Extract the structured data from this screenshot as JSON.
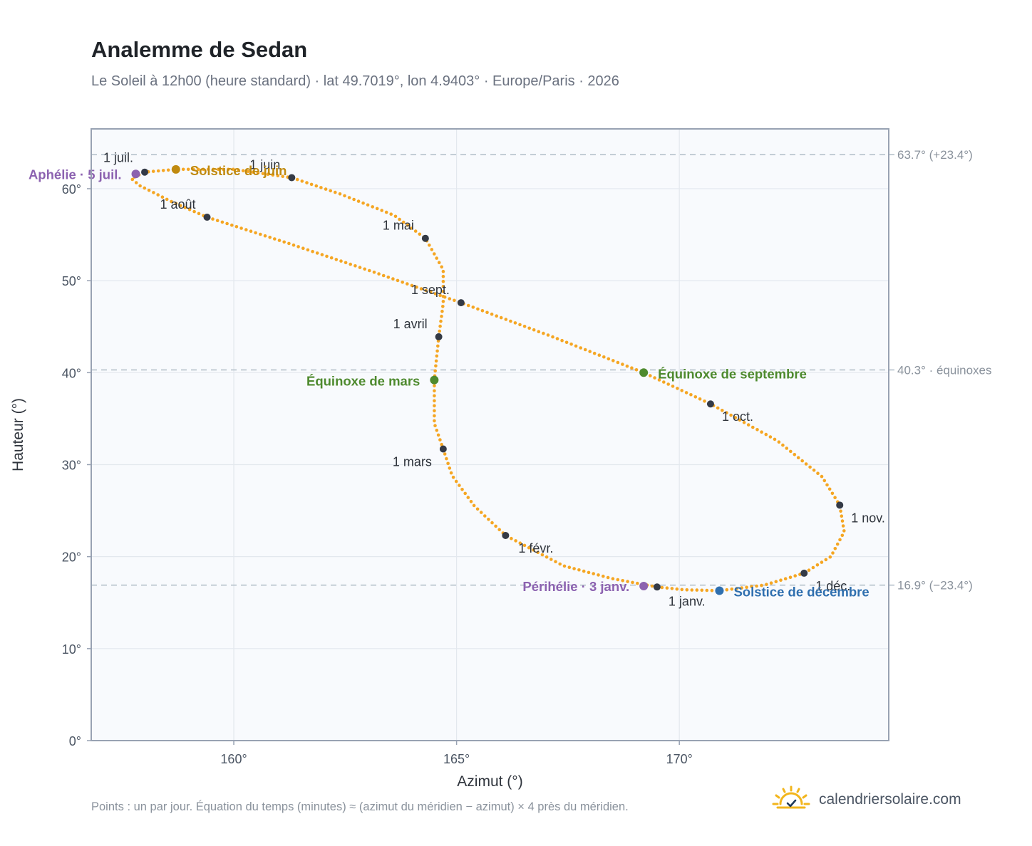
{
  "header": {
    "title": "Analemme de Sedan",
    "subtitle": "Le Soleil à 12h00 (heure standard) · lat 49.7019°, lon 4.9403° · Europe/Paris · 2026"
  },
  "footer": {
    "note": "Points : un par jour. Équation du temps (minutes) ≈ (azimut du méridien − azimut) × 4 près du méridien.",
    "brand": "calendriersolaire.com"
  },
  "colors": {
    "curve": "#f5a623",
    "month_dot": "#343a46",
    "solstice_june": "#c08a10",
    "solstice_december": "#2f6faf",
    "equinox": "#4e8a2e",
    "apsis": "#8c62b0",
    "reference_line": "#b6c2cc",
    "plot_background": "#f8fafd",
    "grid": "#e3e8ee",
    "frame": "#98a2b3"
  },
  "chart_data": {
    "type": "scatter",
    "xlabel": "Azimut (°)",
    "ylabel": "Hauteur (°)",
    "xlim": [
      156.8,
      174.7
    ],
    "ylim": [
      0,
      66.5
    ],
    "xticks": [
      160,
      165,
      170
    ],
    "xtick_labels": [
      "160°",
      "165°",
      "170°"
    ],
    "yticks": [
      0,
      10,
      20,
      30,
      40,
      50,
      60
    ],
    "ytick_labels": [
      "0°",
      "10°",
      "20°",
      "30°",
      "40°",
      "50°",
      "60°"
    ],
    "grid": true,
    "reference_lines": [
      {
        "y": 63.7,
        "label": "63.7° (+23.4°)"
      },
      {
        "y": 40.3,
        "label": "40.3° · équinoxes"
      },
      {
        "y": 16.9,
        "label": "16.9° (−23.4°)"
      }
    ],
    "month_points": [
      {
        "label": "1 janv.",
        "x": 169.5,
        "y": 16.7
      },
      {
        "label": "1 févr.",
        "x": 166.1,
        "y": 22.3
      },
      {
        "label": "1 mars",
        "x": 164.7,
        "y": 31.7
      },
      {
        "label": "1 avril",
        "x": 164.6,
        "y": 43.9
      },
      {
        "label": "1 mai",
        "x": 164.3,
        "y": 54.6
      },
      {
        "label": "1 juin",
        "x": 161.3,
        "y": 61.2
      },
      {
        "label": "1 juil.",
        "x": 158.0,
        "y": 61.8
      },
      {
        "label": "1 août",
        "x": 159.4,
        "y": 56.9
      },
      {
        "label": "1 sept.",
        "x": 165.1,
        "y": 47.6
      },
      {
        "label": "1 oct.",
        "x": 170.7,
        "y": 36.6
      },
      {
        "label": "1 nov.",
        "x": 173.6,
        "y": 25.6
      },
      {
        "label": "1 déc.",
        "x": 172.8,
        "y": 18.2
      }
    ],
    "events": [
      {
        "label": "Solstice de juin",
        "x": 158.7,
        "y": 62.1,
        "kind": "solstice_june"
      },
      {
        "label": "Solstice de décembre",
        "x": 170.9,
        "y": 16.3,
        "kind": "solstice_december"
      },
      {
        "label": "Équinoxe de mars",
        "x": 164.5,
        "y": 39.2,
        "kind": "equinox"
      },
      {
        "label": "Équinoxe de septembre",
        "x": 169.2,
        "y": 40.0,
        "kind": "equinox"
      },
      {
        "label": "Aphélie · 5 juil.",
        "x": 157.8,
        "y": 61.6,
        "kind": "apsis"
      },
      {
        "label": "Périhélie · 3 janv.",
        "x": 169.2,
        "y": 16.8,
        "kind": "apsis"
      }
    ],
    "curve_path": [
      {
        "x": 169.5,
        "y": 16.7
      },
      {
        "x": 168.5,
        "y": 17.6
      },
      {
        "x": 167.4,
        "y": 19.0
      },
      {
        "x": 166.1,
        "y": 22.3
      },
      {
        "x": 165.4,
        "y": 25.5
      },
      {
        "x": 164.9,
        "y": 28.8
      },
      {
        "x": 164.7,
        "y": 31.7
      },
      {
        "x": 164.5,
        "y": 34.5
      },
      {
        "x": 164.5,
        "y": 39.2
      },
      {
        "x": 164.6,
        "y": 43.9
      },
      {
        "x": 164.7,
        "y": 47.5
      },
      {
        "x": 164.7,
        "y": 51.2
      },
      {
        "x": 164.3,
        "y": 54.6
      },
      {
        "x": 163.6,
        "y": 57.1
      },
      {
        "x": 162.4,
        "y": 59.4
      },
      {
        "x": 161.3,
        "y": 61.2
      },
      {
        "x": 160.0,
        "y": 62.1
      },
      {
        "x": 158.7,
        "y": 62.1
      },
      {
        "x": 158.0,
        "y": 61.8
      },
      {
        "x": 157.7,
        "y": 61.1
      },
      {
        "x": 157.9,
        "y": 60.3
      },
      {
        "x": 158.6,
        "y": 58.6
      },
      {
        "x": 159.4,
        "y": 56.9
      },
      {
        "x": 161.2,
        "y": 54.1
      },
      {
        "x": 163.1,
        "y": 51.0
      },
      {
        "x": 165.1,
        "y": 47.6
      },
      {
        "x": 167.1,
        "y": 44.0
      },
      {
        "x": 169.2,
        "y": 40.0
      },
      {
        "x": 170.7,
        "y": 36.6
      },
      {
        "x": 172.2,
        "y": 32.6
      },
      {
        "x": 173.2,
        "y": 28.7
      },
      {
        "x": 173.6,
        "y": 25.6
      },
      {
        "x": 173.7,
        "y": 22.7
      },
      {
        "x": 173.4,
        "y": 20.0
      },
      {
        "x": 172.8,
        "y": 18.2
      },
      {
        "x": 171.9,
        "y": 16.9
      },
      {
        "x": 170.9,
        "y": 16.3
      },
      {
        "x": 170.1,
        "y": 16.4
      },
      {
        "x": 169.5,
        "y": 16.7
      }
    ]
  }
}
